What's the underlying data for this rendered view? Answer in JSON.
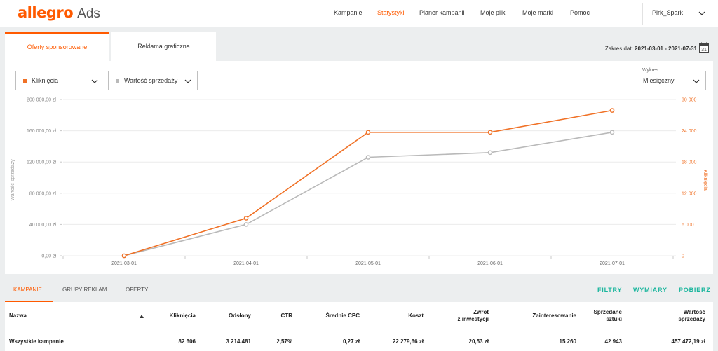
{
  "brand": {
    "name": "allegro",
    "product": "Ads",
    "color": "#ff5a00"
  },
  "nav": {
    "items": [
      {
        "label": "Kampanie",
        "active": false
      },
      {
        "label": "Statystyki",
        "active": true
      },
      {
        "label": "Planer kampanii",
        "active": false
      },
      {
        "label": "Moje pliki",
        "active": false
      },
      {
        "label": "Moje marki",
        "active": false
      },
      {
        "label": "Pomoc",
        "active": false
      }
    ],
    "user": "Pirk_Spark"
  },
  "tabs": [
    {
      "label": "Oferty sponsorowane",
      "active": true
    },
    {
      "label": "Reklama graficzna",
      "active": false
    }
  ],
  "date_range": {
    "label": "Zakres dat:",
    "value": "2021-03-01 - 2021-07-31",
    "calendar_day": "31"
  },
  "selectors": {
    "left_metric": "Kliknięcia",
    "right_metric": "Wartość sprzedaży",
    "chart_group_label": "Wykres",
    "chart_group_value": "Miesięczny"
  },
  "colors": {
    "orange": "#f07126",
    "gray": "#b9b9b9",
    "accent": "#ff5a00",
    "teal": "#1ab69d"
  },
  "chart_data": {
    "type": "line",
    "x": [
      "2021-03-01",
      "2021-04-01",
      "2021-05-01",
      "2021-06-01",
      "2021-07-01"
    ],
    "series": [
      {
        "name": "Kliknięcia",
        "axis": "right",
        "color": "#f07126",
        "values": [
          0,
          7200,
          23700,
          23700,
          27900
        ]
      },
      {
        "name": "Wartość sprzedaży",
        "axis": "left",
        "color": "#b9b9b9",
        "values": [
          0,
          40000,
          126000,
          132000,
          158000
        ]
      }
    ],
    "y_left": {
      "label": "Wartość sprzedaży",
      "ticks": [
        "0,00 zł",
        "40 000,00 zł",
        "80 000,00 zł",
        "120 000,00 zł",
        "160 000,00 zł",
        "200 000,00 zł"
      ],
      "range": [
        0,
        200000
      ]
    },
    "y_right": {
      "label": "Kliknięcia",
      "ticks": [
        "0",
        "6 000",
        "12 000",
        "18 000",
        "24 000",
        "30 000"
      ],
      "range": [
        0,
        30000
      ]
    },
    "grid": true
  },
  "bottom_tabs": [
    {
      "label": "KAMPANIE",
      "active": true
    },
    {
      "label": "GRUPY REKLAM",
      "active": false
    },
    {
      "label": "OFERTY",
      "active": false
    }
  ],
  "actions": [
    "FILTRY",
    "WYMIARY",
    "POBIERZ"
  ],
  "table": {
    "headers": {
      "nazwa": "Nazwa",
      "klikniecia": "Kliknięcia",
      "odslony": "Odsłony",
      "ctr": "CTR",
      "cpc": "Średnie CPC",
      "koszt": "Koszt",
      "zwrot_1": "Zwrot",
      "zwrot_2": "z inwestycji",
      "zainteresowanie": "Zainteresowanie",
      "sprzedane_1": "Sprzedane",
      "sprzedane_2": "sztuki",
      "wartosc_1": "Wartość",
      "wartosc_2": "sprzedaży"
    },
    "rows": [
      {
        "nazwa": "Wszystkie kampanie",
        "klikniecia": "82 606",
        "odslony": "3 214 481",
        "ctr": "2,57%",
        "cpc": "0,27 zł",
        "koszt": "22 279,66 zł",
        "zwrot": "20,53 zł",
        "zainteresowanie": "15 260",
        "sprzedane": "42 943",
        "wartosc": "457 472,19 zł"
      }
    ]
  }
}
